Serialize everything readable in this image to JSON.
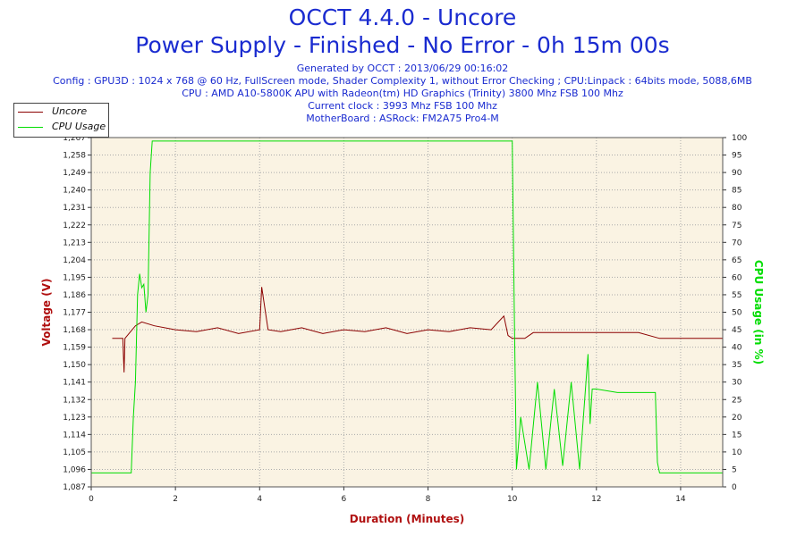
{
  "header": {
    "title": "OCCT 4.4.0 - Uncore",
    "subtitle": "Power Supply - Finished - No Error - 0h 15m 00s",
    "generated": "Generated by OCCT : 2013/06/29 00:16:02",
    "config": "Config : GPU3D : 1024 x 768 @ 60 Hz, FullScreen mode, Shader Complexity 1, without Error Checking ; CPU:Linpack : 64bits mode, 5088,6MB",
    "cpu": "CPU : AMD A10-5800K APU with Radeon(tm) HD Graphics (Trinity) 3800 Mhz FSB 100 Mhz",
    "clock": "Current clock : 3993 Mhz FSB 100 Mhz",
    "motherboard": "MotherBoard : ASRock: FM2A75 Pro4-M"
  },
  "colors": {
    "uncore": "#8b0000",
    "cpu": "#00dd00",
    "title": "#1a2bd0",
    "plot_bg": "#faf3e3",
    "grid": "#aaaaaa",
    "axis_title": "#b01010"
  },
  "chart_data": {
    "type": "line",
    "xlabel": "Duration (Minutes)",
    "ylabel": "Voltage (V)",
    "y2label": "CPU Usage (in %)",
    "xlim": [
      0,
      15
    ],
    "ylim": [
      1.087,
      1.267
    ],
    "y2lim": [
      0,
      100
    ],
    "x_ticks": [
      0,
      2,
      4,
      6,
      8,
      10,
      12,
      14
    ],
    "y_ticks": [
      "1,087",
      "1,096",
      "1,105",
      "1,114",
      "1,123",
      "1,132",
      "1,141",
      "1,150",
      "1,159",
      "1,168",
      "1,177",
      "1,186",
      "1,195",
      "1,204",
      "1,213",
      "1,222",
      "1,231",
      "1,240",
      "1,249",
      "1,258",
      "1,267"
    ],
    "y2_ticks": [
      0,
      5,
      10,
      15,
      20,
      25,
      30,
      35,
      40,
      45,
      50,
      55,
      60,
      65,
      70,
      75,
      80,
      85,
      90,
      95,
      100
    ],
    "legend": {
      "placement": "top-left",
      "entries": [
        "Uncore",
        "CPU Usage"
      ]
    },
    "grid": true,
    "series": [
      {
        "name": "Uncore",
        "axis": "left",
        "x": [
          0.5,
          0.75,
          0.78,
          0.8,
          1.05,
          1.2,
          1.5,
          2.0,
          2.5,
          3.0,
          3.5,
          4.0,
          4.05,
          4.2,
          4.5,
          5.0,
          5.5,
          6.0,
          6.5,
          7.0,
          7.5,
          8.0,
          8.5,
          9.0,
          9.5,
          9.8,
          9.9,
          10.0,
          10.05,
          10.1,
          10.3,
          10.5,
          11.0,
          11.5,
          12.0,
          12.5,
          13.0,
          13.5,
          14.0,
          15.0
        ],
        "y": [
          1.1635,
          1.1635,
          1.146,
          1.1635,
          1.17,
          1.172,
          1.17,
          1.168,
          1.167,
          1.169,
          1.166,
          1.168,
          1.19,
          1.168,
          1.167,
          1.169,
          1.166,
          1.168,
          1.167,
          1.169,
          1.166,
          1.168,
          1.167,
          1.169,
          1.168,
          1.175,
          1.165,
          1.1635,
          1.1635,
          1.1635,
          1.1635,
          1.1665,
          1.1665,
          1.1665,
          1.1665,
          1.1665,
          1.1665,
          1.1635,
          1.1635,
          1.1635
        ]
      },
      {
        "name": "CPU Usage",
        "axis": "right",
        "x": [
          0,
          0.5,
          0.95,
          1.0,
          1.05,
          1.1,
          1.15,
          1.2,
          1.25,
          1.3,
          1.35,
          1.4,
          1.45,
          1.5,
          2,
          3,
          4,
          5,
          6,
          7,
          8,
          9,
          9.5,
          9.95,
          10.0,
          10.05,
          10.1,
          10.15,
          10.2,
          10.4,
          10.6,
          10.8,
          11.0,
          11.2,
          11.4,
          11.6,
          11.8,
          11.85,
          11.9,
          12.0,
          12.5,
          12.7,
          12.9,
          13.1,
          13.3,
          13.4,
          13.45,
          13.5,
          14,
          14.5,
          15.0
        ],
        "y": [
          4,
          4,
          4,
          20,
          30,
          55,
          61,
          57,
          58,
          50,
          55,
          90,
          99,
          99,
          99,
          99,
          99,
          99,
          99,
          99,
          99,
          99,
          99,
          99,
          99,
          50,
          5,
          12,
          20,
          5,
          30,
          5,
          28,
          6,
          30,
          5,
          38,
          18,
          28,
          28,
          27,
          27,
          27,
          27,
          27,
          27,
          7,
          4,
          4,
          4,
          4
        ]
      }
    ]
  }
}
